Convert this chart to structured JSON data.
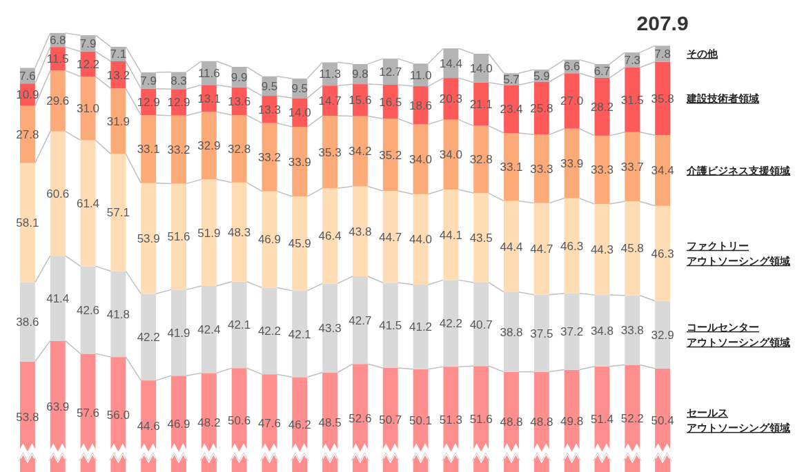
{
  "chart_data": {
    "type": "bar",
    "stacked": true,
    "legend": "right",
    "categories": [
      null,
      null,
      null,
      null,
      null,
      null,
      null,
      null,
      null,
      null,
      null,
      null,
      null,
      null,
      null,
      null,
      null,
      null,
      null,
      null,
      null,
      null
    ],
    "totals": [
      null,
      null,
      null,
      null,
      null,
      null,
      null,
      null,
      null,
      null,
      null,
      null,
      null,
      null,
      null,
      null,
      null,
      null,
      null,
      null,
      null,
      "207.9"
    ],
    "series": [
      {
        "name": "セールスアウトソーシング領域",
        "color": "#ff8f8f",
        "values": [
          53.8,
          63.9,
          57.6,
          56.0,
          44.6,
          46.9,
          48.2,
          50.6,
          47.6,
          46.2,
          48.5,
          52.6,
          50.7,
          50.1,
          51.3,
          51.6,
          48.8,
          48.8,
          49.8,
          51.4,
          52.2,
          50.4
        ],
        "value_labels": [
          "53.8",
          "63.9",
          "57.6",
          "56.0",
          "44.6",
          "46.9",
          "48.2",
          "50.6",
          "47.6",
          "46.2",
          "48.5",
          "52.6",
          "50.7",
          "50.1",
          "51.3",
          "51.6",
          "48.8",
          "48.8",
          "49.8",
          "51.4",
          "52.2",
          "50.4"
        ]
      },
      {
        "name": "コールセンターアウトソーシング領域",
        "color": "#d9d9d9",
        "values": [
          38.6,
          41.4,
          42.6,
          41.8,
          42.2,
          41.9,
          42.4,
          42.1,
          42.2,
          42.1,
          43.3,
          42.7,
          41.5,
          41.2,
          42.2,
          40.7,
          38.8,
          37.5,
          37.2,
          34.8,
          33.8,
          32.9
        ],
        "value_labels": [
          "38.6",
          "41.4",
          "42.6",
          "41.8",
          "42.2",
          "41.9",
          "42.4",
          "42.1",
          "42.2",
          "42.1",
          "43.3",
          "42.7",
          "41.5",
          "41.2",
          "42.2",
          "40.7",
          "38.8",
          "37.5",
          "37.2",
          "34.8",
          "33.8",
          "32.9"
        ]
      },
      {
        "name": "ファクトリーアウトソーシング領域",
        "color": "#ffdcb4",
        "values": [
          58.1,
          60.6,
          61.4,
          57.1,
          53.9,
          51.6,
          51.9,
          48.3,
          46.9,
          45.9,
          46.4,
          43.8,
          44.7,
          44.0,
          44.1,
          43.5,
          44.4,
          44.7,
          46.3,
          44.3,
          45.8,
          46.3
        ],
        "value_labels": [
          "58.1",
          "60.6",
          "61.4",
          "57.1",
          "53.9",
          "51.6",
          "51.9",
          "48.3",
          "46.9",
          "45.9",
          "46.4",
          "43.8",
          "44.7",
          "44.0",
          "44.1",
          "43.5",
          "44.4",
          "44.7",
          "46.3",
          "44.3",
          "45.8",
          "46.3"
        ]
      },
      {
        "name": "介護ビジネス支援領域",
        "color": "#fbaa78",
        "values": [
          27.8,
          29.6,
          31.0,
          31.9,
          33.1,
          33.2,
          32.9,
          32.8,
          33.2,
          33.9,
          35.3,
          34.2,
          35.2,
          34.0,
          34.0,
          32.8,
          33.1,
          33.3,
          33.9,
          33.3,
          33.7,
          34.4
        ],
        "value_labels": [
          "27.8",
          "29.6",
          "31.0",
          "31.9",
          "33.1",
          "33.2",
          "32.9",
          "32.8",
          "33.2",
          "33.9",
          "35.3",
          "34.2",
          "35.2",
          "34.0",
          "34.0",
          "32.8",
          "33.1",
          "33.3",
          "33.9",
          "33.3",
          "33.7",
          "34.4"
        ]
      },
      {
        "name": "建設技術者領域",
        "color": "#ff5a5a",
        "values": [
          10.9,
          11.5,
          12.2,
          13.2,
          12.9,
          12.9,
          13.1,
          13.6,
          13.3,
          14.0,
          14.7,
          15.6,
          16.5,
          18.6,
          20.3,
          21.1,
          23.4,
          25.8,
          27.0,
          28.2,
          31.5,
          35.8
        ],
        "value_labels": [
          "10.9",
          "11.5",
          "12.2",
          "13.2",
          "12.9",
          "12.9",
          "13.1",
          "13.6",
          "13.3",
          "14.0",
          "14.7",
          "15.6",
          "16.5",
          "18.6",
          "20.3",
          "21.1",
          "23.4",
          "25.8",
          "27.0",
          "28.2",
          "31.5",
          "35.8"
        ]
      },
      {
        "name": "その他",
        "color": "#b4b4b4",
        "values": [
          7.6,
          6.8,
          7.9,
          7.1,
          7.9,
          8.3,
          11.6,
          9.9,
          9.5,
          9.5,
          11.3,
          9.8,
          12.7,
          11.0,
          14.4,
          14.0,
          5.7,
          5.9,
          6.6,
          6.7,
          7.3,
          7.8
        ],
        "value_labels": [
          "7.6",
          "6.8",
          "7.9",
          "7.1",
          "7.9",
          "8.3",
          "11.6",
          "9.9",
          "9.5",
          "9.5",
          "11.3",
          "9.8",
          "12.7",
          "11.0",
          "14.4",
          "14.0",
          "5.7",
          "5.9",
          "6.6",
          "6.7",
          "7.3",
          "7.8"
        ]
      }
    ]
  }
}
